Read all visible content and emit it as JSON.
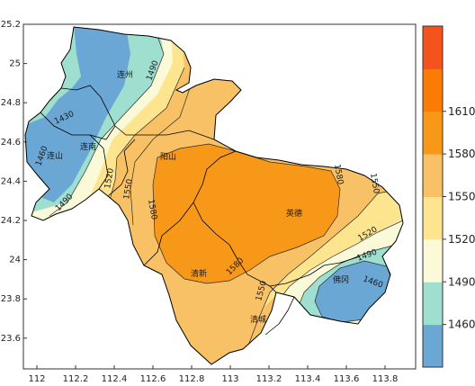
{
  "map": {
    "lon_ticks": [
      "112",
      "112.2",
      "112.4",
      "112.6",
      "112.8",
      "113",
      "113.2",
      "113.4",
      "113.6",
      "113.8"
    ],
    "lat_ticks": [
      "25.2",
      "25",
      "24.8",
      "24.6",
      "24.4",
      "24.2",
      "24",
      "23.8",
      "23.6"
    ],
    "place_labels": {
      "lianzhou": "连州",
      "liannan": "连南",
      "lianshan": "连山",
      "yangshan": "阳山",
      "yingde": "英德",
      "qingxin": "清新",
      "qingcheng": "清城",
      "fogang": "佛冈"
    },
    "isoline_labels": {
      "l1490_n": "1490",
      "l1430": "1430",
      "l1460_w": "1460",
      "l1490_w": "1490",
      "l1520_w": "1520",
      "l1550_w": "1550",
      "l1580_w": "1580",
      "l1580_ne": "1580",
      "l1550_e": "1550",
      "l1520_e": "1520",
      "l1490_se": "1490",
      "l1460_se": "1460",
      "l1580_s": "1580",
      "l1550_s": "1550"
    }
  },
  "colorbar": {
    "tick_labels": [
      "1460",
      "1490",
      "1520",
      "1550",
      "1580",
      "1610"
    ],
    "colors": [
      "#6aa7d4",
      "#9edfd0",
      "#fafad8",
      "#fde48f",
      "#f9c166",
      "#f79818",
      "#fb7c05",
      "#f5531c"
    ]
  },
  "colors": {
    "c1430": "#6aa7d4",
    "c1460": "#9edfd0",
    "c1490": "#fafad8",
    "c1520": "#fde48f",
    "c1550": "#f9c166",
    "c1580": "#f79818"
  }
}
